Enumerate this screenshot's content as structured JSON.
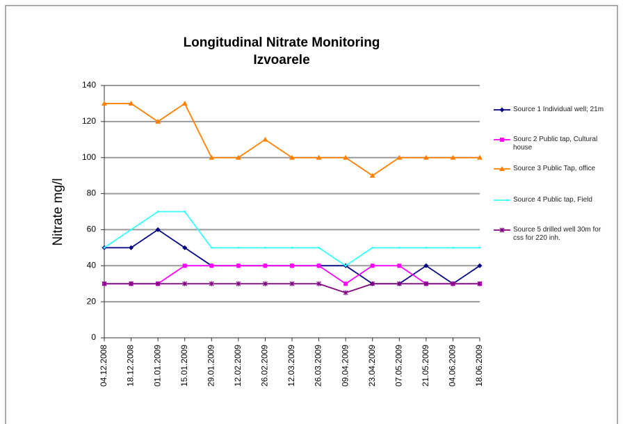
{
  "chart_data": {
    "type": "line",
    "title": "Longitudinal Nitrate Monitoring",
    "subtitle": "Izvoarele",
    "y_label": "Nitrate mg/l",
    "categories": [
      "04.12.2008",
      "18.12.2008",
      "01.01.2009",
      "15.01.2009",
      "29.01.2009",
      "12.02.2009",
      "26.02.2009",
      "12.03.2009",
      "26.03.2009",
      "09.04.2009",
      "23.04.2009",
      "07.05.2009",
      "21.05.2009",
      "04.06.2009",
      "18.06.2009"
    ],
    "series": [
      {
        "name": "Source 1 Individual well; 21m",
        "color": "#000080",
        "marker": "diamond",
        "values": [
          50,
          50,
          60,
          50,
          40,
          40,
          40,
          40,
          40,
          40,
          30,
          30,
          40,
          30,
          40
        ]
      },
      {
        "name": "Sourc 2  Public tap, Cultural house",
        "color": "#ff00ff",
        "marker": "square",
        "values": [
          30,
          30,
          30,
          40,
          40,
          40,
          40,
          40,
          40,
          30,
          40,
          40,
          30,
          30,
          30
        ]
      },
      {
        "name": "Source 3     Public Tap, office",
        "color": "#ff8000",
        "marker": "triangle",
        "values": [
          130,
          130,
          120,
          130,
          100,
          100,
          110,
          100,
          100,
          100,
          90,
          100,
          100,
          100,
          100
        ]
      },
      {
        "name": "Source 4 Public tap, Field",
        "color": "#33ffff",
        "marker": "none",
        "values": [
          50,
          60,
          70,
          70,
          50,
          50,
          50,
          50,
          50,
          40,
          50,
          50,
          50,
          50,
          50
        ]
      },
      {
        "name": "Source 5 drilled well 30m for css for 220 inh.",
        "color": "#800080",
        "marker": "star",
        "values": [
          30,
          30,
          30,
          30,
          30,
          30,
          30,
          30,
          30,
          25,
          30,
          30,
          30,
          30,
          30
        ]
      }
    ],
    "ylim": [
      0,
      140
    ],
    "yticks": [
      0,
      20,
      40,
      60,
      80,
      100,
      120,
      140
    ],
    "grid": true,
    "legend": "right"
  }
}
